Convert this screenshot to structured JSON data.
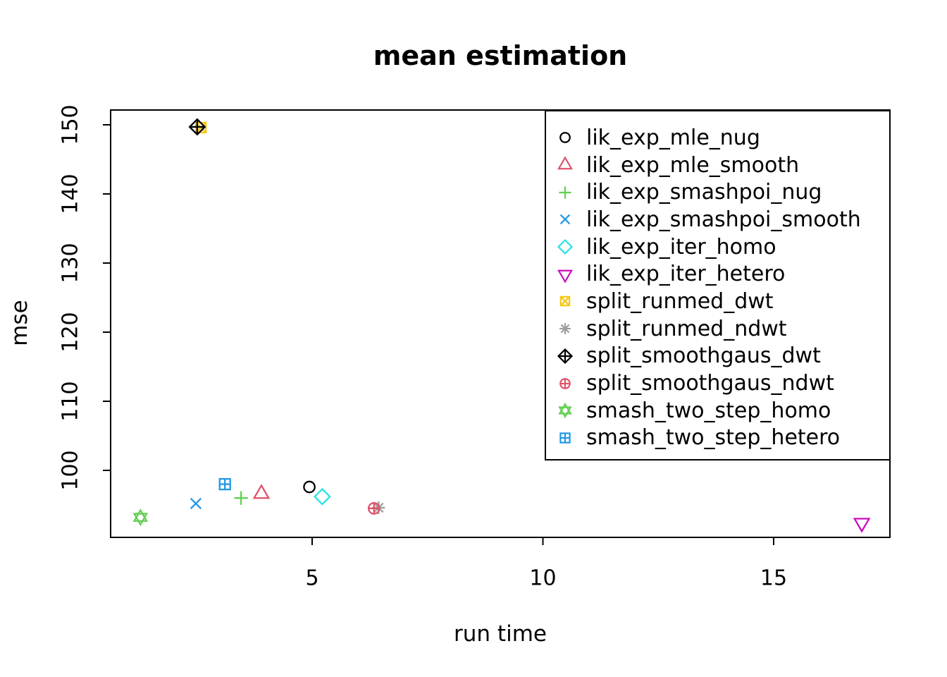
{
  "chart_data": {
    "type": "scatter",
    "title": "mean estimation",
    "xlabel": "run time",
    "ylabel": "mse",
    "xlim": [
      0.63,
      17.52
    ],
    "ylim": [
      90.3,
      152.1
    ],
    "x_ticks": [
      "5",
      "10",
      "15"
    ],
    "x_tick_values": [
      5,
      10,
      15
    ],
    "y_ticks": [
      "100",
      "110",
      "120",
      "130",
      "140",
      "150"
    ],
    "y_tick_values": [
      100,
      110,
      120,
      130,
      140,
      150
    ],
    "grid": false,
    "legend_position": "topright",
    "series": [
      {
        "name": "lik_exp_mle_nug",
        "pch": 1,
        "symbol": "circle",
        "color": "#000000",
        "x": 4.94,
        "y": 97.6
      },
      {
        "name": "lik_exp_mle_smooth",
        "pch": 2,
        "symbol": "triangle-up",
        "color": "#DF536B",
        "x": 3.9,
        "y": 96.6
      },
      {
        "name": "lik_exp_smashpoi_nug",
        "pch": 3,
        "symbol": "plus",
        "color": "#61D04F",
        "x": 3.46,
        "y": 96.0
      },
      {
        "name": "lik_exp_smashpoi_smooth",
        "pch": 4,
        "symbol": "x-cross",
        "color": "#2297E6",
        "x": 2.48,
        "y": 95.2
      },
      {
        "name": "lik_exp_iter_homo",
        "pch": 5,
        "symbol": "diamond",
        "color": "#28E2E5",
        "x": 5.22,
        "y": 96.2
      },
      {
        "name": "lik_exp_iter_hetero",
        "pch": 6,
        "symbol": "triangle-down",
        "color": "#CD0BBC",
        "x": 16.91,
        "y": 92.4
      },
      {
        "name": "split_runmed_dwt",
        "pch": 7,
        "symbol": "square-x",
        "color": "#F5C710",
        "x": 2.59,
        "y": 149.6
      },
      {
        "name": "split_runmed_ndwt",
        "pch": 8,
        "symbol": "asterisk",
        "color": "#9E9E9E",
        "x": 6.44,
        "y": 94.6
      },
      {
        "name": "split_smoothgaus_dwt",
        "pch": 9,
        "symbol": "diamond-plus",
        "color": "#000000",
        "x": 2.51,
        "y": 149.7
      },
      {
        "name": "split_smoothgaus_ndwt",
        "pch": 10,
        "symbol": "circle-plus",
        "color": "#DF536B",
        "x": 6.34,
        "y": 94.5
      },
      {
        "name": "smash_two_step_homo",
        "pch": 11,
        "symbol": "hexagram",
        "color": "#61D04F",
        "x": 1.28,
        "y": 93.2
      },
      {
        "name": "smash_two_step_hetero",
        "pch": 12,
        "symbol": "square-plus",
        "color": "#2297E6",
        "x": 3.11,
        "y": 98.0
      }
    ]
  }
}
